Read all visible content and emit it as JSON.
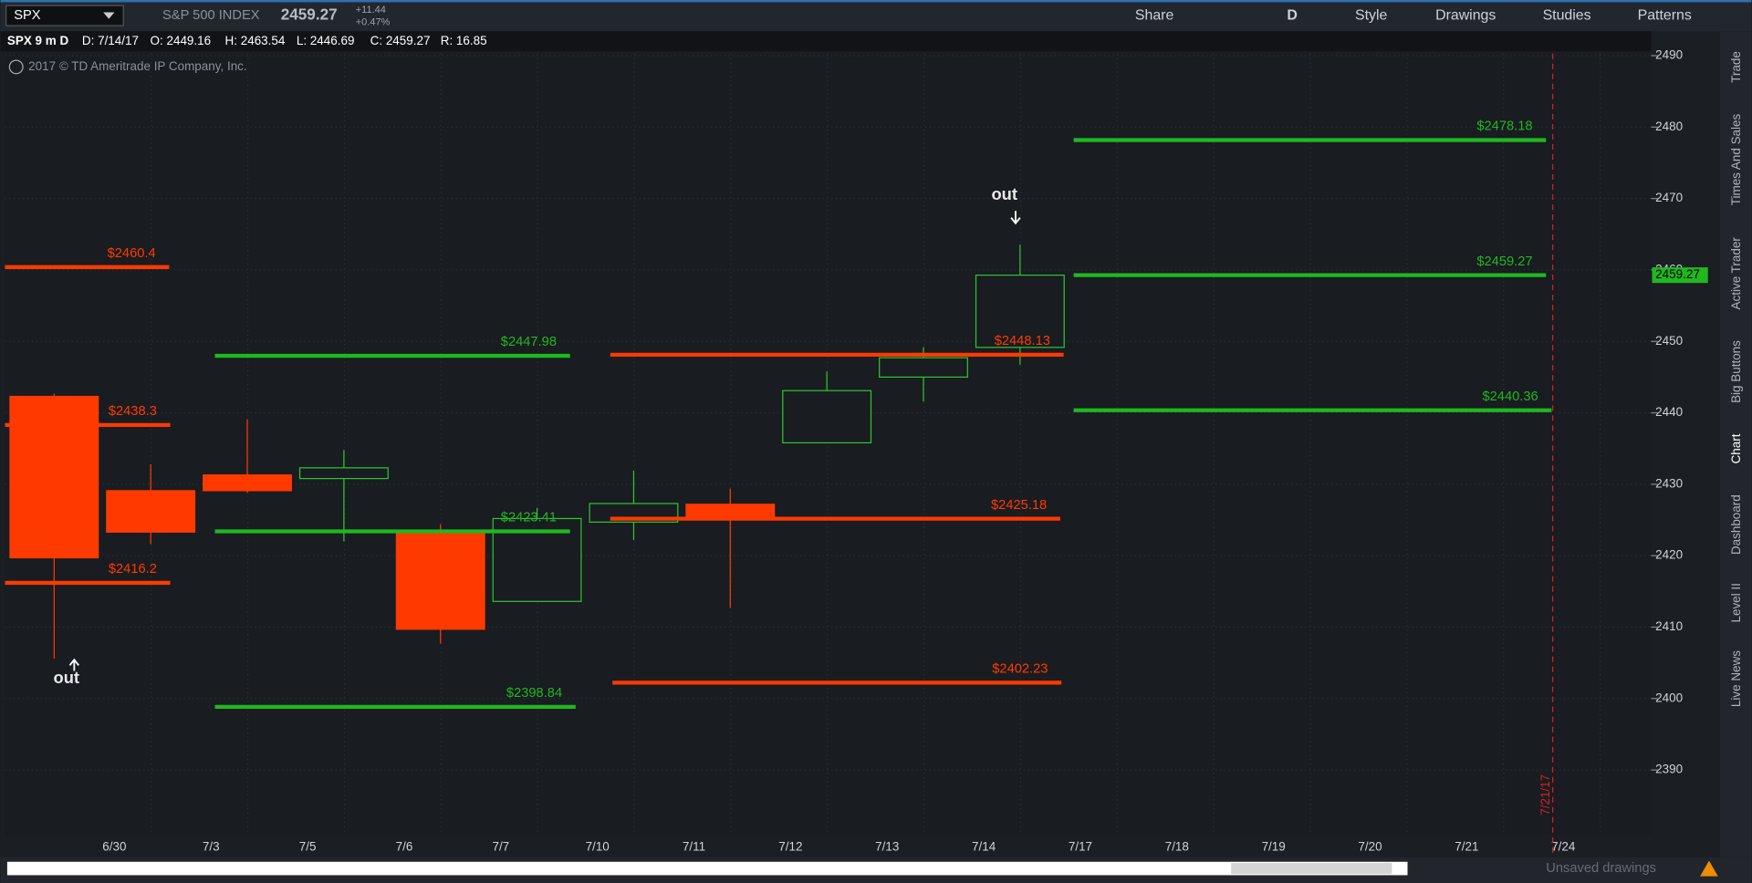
{
  "ui": {
    "symbol": "SPX",
    "description": "S&P 500 INDEX",
    "last": "2459.27",
    "change": "+11.44",
    "change_pct": "+0.47%",
    "toolbar": [
      "Share",
      "D",
      "Style",
      "Drawings",
      "Studies",
      "Patterns"
    ],
    "info": [
      "SPX 9 m D",
      "D: 7/14/17",
      "O: 2449.16",
      "H: 2463.54",
      "L: 2446.69",
      "C: 2459.27",
      "R: 16.85"
    ],
    "copyright": "2017 © TD Ameritrade IP Company, Inc.",
    "side_tabs": [
      "Trade",
      "Times And Sales",
      "Active Trader",
      "Big Buttons",
      "Chart",
      "Dashboard",
      "Level II",
      "Live News"
    ],
    "expiry_marker": "7/21/17",
    "status": "Unsaved drawings"
  },
  "chart_data": {
    "type": "candlestick",
    "categories": [
      null,
      "6/30",
      "7/3",
      "7/5",
      "7/6",
      "7/7",
      "7/10",
      "7/11",
      "7/12",
      "7/13",
      "7/14",
      "7/17",
      "7/18",
      "7/19",
      "7/20",
      "7/21",
      "7/24"
    ],
    "open": [
      2442.3,
      2429.1,
      2431.3,
      2430.8,
      2423.1,
      2413.6,
      2424.7,
      2427.2,
      2435.8,
      2445.0,
      2449.16,
      null,
      null,
      null,
      null,
      null,
      null
    ],
    "high": [
      2442.7,
      2432.8,
      2439.1,
      2434.8,
      2424.4,
      2426.7,
      2431.9,
      2429.4,
      2445.8,
      2449.2,
      2463.54,
      null,
      null,
      null,
      null,
      null,
      null
    ],
    "low": [
      2405.6,
      2421.6,
      2428.8,
      2422.0,
      2407.7,
      2413.6,
      2422.2,
      2412.7,
      2435.8,
      2441.6,
      2446.69,
      null,
      null,
      null,
      null,
      null,
      null
    ],
    "close": [
      2419.7,
      2423.3,
      2429.1,
      2432.3,
      2409.7,
      2425.2,
      2427.3,
      2425.3,
      2443.1,
      2447.7,
      2459.27,
      null,
      null,
      null,
      null,
      null,
      null
    ],
    "up_color": "#2ec52e",
    "down_color": "#ff3a00",
    "levels": {
      "values": [
        2460.4,
        2438.3,
        2416.2,
        2447.98,
        2423.41,
        2398.84,
        2448.13,
        2425.18,
        2402.23,
        2478.18,
        2459.27,
        2440.36
      ],
      "value_labels": [
        "$2460.4",
        "$2438.3",
        "$2416.2",
        "$2447.98",
        "$2423.41",
        "$2398.84",
        "$2448.13",
        "$2425.18",
        "$2402.23",
        "$2478.18",
        "$2459.27",
        "$2440.36"
      ],
      "colors": [
        "#ff3a00",
        "#ff3a00",
        "#ff3a00",
        "#1fb81f",
        "#1fb81f",
        "#1fb81f",
        "#ff3a00",
        "#ff3a00",
        "#ff3a00",
        "#1fb81f",
        "#1fb81f",
        "#1fb81f"
      ]
    },
    "annotations": [
      "out",
      "out"
    ],
    "last_price": 2459.27,
    "ylim": [
      2380.9,
      2490.6
    ],
    "yticks": [
      2390,
      2400,
      2410,
      2420,
      2430,
      2440,
      2450,
      2460,
      2470,
      2480,
      2490
    ],
    "grid": true
  }
}
